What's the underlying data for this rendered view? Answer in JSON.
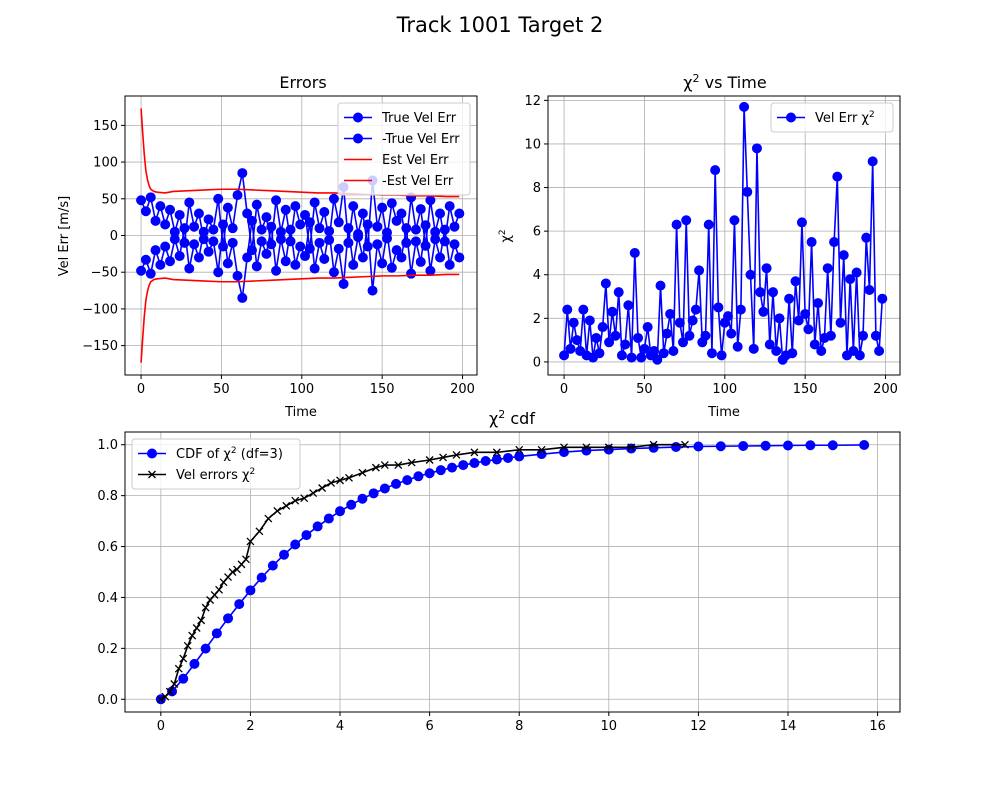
{
  "figure": {
    "title": "Track 1001 Target 2"
  },
  "colors": {
    "true_err": "#0000ff",
    "est_err": "#ff0000",
    "cdf_theory": "#0000ff",
    "cdf_empirical": "#000000",
    "grid": "#b0b0b0"
  },
  "chart_data": [
    {
      "id": "errors",
      "type": "line",
      "title": "Errors",
      "xlabel": "Time",
      "ylabel": "Vel Err [m/s]",
      "xlim": [
        -10,
        209
      ],
      "ylim": [
        -190,
        190
      ],
      "xticks": [
        0,
        50,
        100,
        150,
        200
      ],
      "yticks": [
        -150,
        -100,
        -50,
        0,
        50,
        100,
        150
      ],
      "grid": true,
      "legend_position": "upper-right",
      "series": [
        {
          "name": "True Vel Err",
          "color": "#0000ff",
          "marker": "o",
          "line": true,
          "x": [
            0,
            3,
            6,
            9,
            12,
            15,
            18,
            21,
            24,
            27,
            30,
            33,
            36,
            39,
            42,
            45,
            48,
            51,
            54,
            57,
            60,
            63,
            66,
            69,
            72,
            75,
            78,
            81,
            84,
            87,
            90,
            93,
            96,
            99,
            102,
            105,
            108,
            111,
            114,
            117,
            120,
            123,
            126,
            129,
            132,
            135,
            138,
            141,
            144,
            147,
            150,
            153,
            156,
            159,
            162,
            165,
            168,
            171,
            174,
            177,
            180,
            183,
            186,
            189,
            192,
            195,
            198
          ],
          "y": [
            48,
            33,
            52,
            20,
            40,
            15,
            35,
            5,
            28,
            -10,
            45,
            12,
            30,
            -5,
            22,
            8,
            50,
            -15,
            38,
            10,
            55,
            85,
            30,
            -20,
            42,
            8,
            25,
            -12,
            48,
            5,
            35,
            -8,
            40,
            15,
            28,
            -18,
            45,
            10,
            32,
            -6,
            50,
            18,
            66,
            -10,
            40,
            2,
            30,
            -15,
            75,
            12,
            38,
            -4,
            44,
            20,
            30,
            -10,
            52,
            8,
            36,
            -14,
            48,
            5,
            30,
            -8,
            40,
            12,
            30
          ]
        },
        {
          "name": "-True Vel Err",
          "color": "#0000ff",
          "marker": "o",
          "line": true,
          "x": [
            0,
            3,
            6,
            9,
            12,
            15,
            18,
            21,
            24,
            27,
            30,
            33,
            36,
            39,
            42,
            45,
            48,
            51,
            54,
            57,
            60,
            63,
            66,
            69,
            72,
            75,
            78,
            81,
            84,
            87,
            90,
            93,
            96,
            99,
            102,
            105,
            108,
            111,
            114,
            117,
            120,
            123,
            126,
            129,
            132,
            135,
            138,
            141,
            144,
            147,
            150,
            153,
            156,
            159,
            162,
            165,
            168,
            171,
            174,
            177,
            180,
            183,
            186,
            189,
            192,
            195,
            198
          ],
          "y": [
            -48,
            -33,
            -52,
            -20,
            -40,
            -15,
            -35,
            -5,
            -28,
            10,
            -45,
            -12,
            -30,
            5,
            -22,
            -8,
            -50,
            15,
            -38,
            -10,
            -55,
            -85,
            -30,
            20,
            -42,
            -8,
            -25,
            12,
            -48,
            -5,
            -35,
            8,
            -40,
            -15,
            -28,
            18,
            -45,
            -10,
            -32,
            6,
            -50,
            -18,
            -66,
            10,
            -40,
            -2,
            -30,
            15,
            -75,
            -12,
            -38,
            4,
            -44,
            -20,
            -30,
            10,
            -52,
            -8,
            -36,
            14,
            -48,
            -5,
            -30,
            8,
            -40,
            -12,
            -30
          ]
        },
        {
          "name": "Est Vel Err",
          "color": "#ff0000",
          "marker": "",
          "line": true,
          "x": [
            0,
            1,
            2,
            3,
            4,
            5,
            6,
            8,
            10,
            15,
            20,
            30,
            40,
            50,
            60,
            70,
            80,
            90,
            100,
            110,
            120,
            130,
            140,
            150,
            160,
            170,
            180,
            190,
            198
          ],
          "y": [
            173,
            140,
            110,
            88,
            76,
            68,
            63,
            60,
            59,
            58,
            60,
            61,
            62,
            63,
            63,
            62,
            61,
            60,
            59,
            58,
            58,
            57,
            56,
            55,
            55,
            54,
            54,
            53,
            53
          ]
        },
        {
          "name": "-Est Vel Err",
          "color": "#ff0000",
          "marker": "",
          "line": true,
          "x": [
            0,
            1,
            2,
            3,
            4,
            5,
            6,
            8,
            10,
            15,
            20,
            30,
            40,
            50,
            60,
            70,
            80,
            90,
            100,
            110,
            120,
            130,
            140,
            150,
            160,
            170,
            180,
            190,
            198
          ],
          "y": [
            -173,
            -140,
            -110,
            -88,
            -76,
            -68,
            -63,
            -60,
            -59,
            -58,
            -60,
            -61,
            -62,
            -63,
            -63,
            -62,
            -61,
            -60,
            -59,
            -58,
            -58,
            -57,
            -56,
            -55,
            -55,
            -54,
            -54,
            -53,
            -53
          ]
        }
      ]
    },
    {
      "id": "chi2-time",
      "type": "line",
      "title": "χ² vs Time",
      "xlabel": "Time",
      "ylabel": "χ²",
      "xlim": [
        -10,
        209
      ],
      "ylim": [
        -0.6,
        12.2
      ],
      "xticks": [
        0,
        50,
        100,
        150,
        200
      ],
      "yticks": [
        0,
        2,
        4,
        6,
        8,
        10,
        12
      ],
      "grid": true,
      "legend_position": "upper-right",
      "series": [
        {
          "name": "Vel  Err χ²",
          "color": "#0000ff",
          "marker": "o",
          "line": true,
          "x": [
            0,
            2,
            4,
            6,
            8,
            10,
            12,
            14,
            16,
            18,
            20,
            22,
            24,
            26,
            28,
            30,
            32,
            34,
            36,
            38,
            40,
            42,
            44,
            46,
            48,
            50,
            52,
            54,
            56,
            58,
            60,
            62,
            64,
            66,
            68,
            70,
            72,
            74,
            76,
            78,
            80,
            82,
            84,
            86,
            88,
            90,
            92,
            94,
            96,
            98,
            100,
            102,
            104,
            106,
            108,
            110,
            112,
            114,
            116,
            118,
            120,
            122,
            124,
            126,
            128,
            130,
            132,
            134,
            136,
            138,
            140,
            142,
            144,
            146,
            148,
            150,
            152,
            154,
            156,
            158,
            160,
            162,
            164,
            166,
            168,
            170,
            172,
            174,
            176,
            178,
            180,
            182,
            184,
            186,
            188,
            190,
            192,
            194,
            196,
            198
          ],
          "y": [
            0.3,
            2.4,
            0.6,
            1.8,
            1.0,
            0.5,
            2.4,
            0.3,
            1.9,
            0.2,
            1.1,
            0.4,
            1.6,
            3.6,
            0.9,
            2.3,
            1.2,
            3.2,
            0.3,
            0.8,
            2.6,
            0.2,
            5.0,
            1.1,
            0.2,
            0.6,
            1.6,
            0.3,
            0.5,
            0.1,
            3.5,
            0.4,
            1.3,
            2.2,
            0.5,
            6.3,
            1.8,
            0.9,
            6.5,
            1.2,
            1.9,
            2.4,
            4.2,
            0.9,
            1.2,
            6.3,
            0.4,
            8.8,
            2.5,
            0.3,
            1.8,
            2.1,
            1.3,
            6.5,
            0.7,
            2.4,
            11.7,
            7.8,
            4.0,
            0.6,
            9.8,
            3.2,
            2.3,
            4.3,
            0.8,
            3.2,
            0.5,
            2.0,
            0.1,
            0.3,
            2.9,
            0.4,
            3.7,
            1.9,
            6.4,
            2.2,
            1.5,
            5.5,
            0.8,
            2.7,
            0.5,
            1.1,
            4.3,
            1.2,
            5.5,
            8.5,
            1.8,
            4.9,
            0.3,
            3.8,
            0.5,
            4.1,
            0.3,
            1.2,
            5.7,
            3.3,
            9.2,
            1.2,
            0.5,
            2.9
          ]
        }
      ]
    },
    {
      "id": "chi2-cdf",
      "type": "line",
      "title": "χ² cdf",
      "xlabel": "",
      "ylabel": "",
      "xlim": [
        -0.8,
        16.5
      ],
      "ylim": [
        -0.05,
        1.05
      ],
      "xticks": [
        0,
        2,
        4,
        6,
        8,
        10,
        12,
        14,
        16
      ],
      "yticks": [
        0.0,
        0.2,
        0.4,
        0.6,
        0.8,
        1.0
      ],
      "grid": true,
      "legend_position": "upper-left",
      "series": [
        {
          "name": "CDF of χ² (df=3)",
          "color": "#0000ff",
          "marker": "o",
          "line": true,
          "x": [
            0,
            0.25,
            0.5,
            0.75,
            1.0,
            1.25,
            1.5,
            1.75,
            2.0,
            2.25,
            2.5,
            2.75,
            3.0,
            3.25,
            3.5,
            3.75,
            4.0,
            4.25,
            4.5,
            4.75,
            5.0,
            5.25,
            5.5,
            5.75,
            6.0,
            6.25,
            6.5,
            6.75,
            7.0,
            7.25,
            7.5,
            7.75,
            8.0,
            8.5,
            9.0,
            9.5,
            10.0,
            10.5,
            11.0,
            11.5,
            12.0,
            12.5,
            13.0,
            13.5,
            14.0,
            14.5,
            15.0,
            15.7
          ],
          "y": [
            0.0,
            0.031,
            0.081,
            0.139,
            0.199,
            0.259,
            0.318,
            0.374,
            0.428,
            0.478,
            0.525,
            0.568,
            0.608,
            0.645,
            0.679,
            0.71,
            0.739,
            0.764,
            0.788,
            0.809,
            0.828,
            0.846,
            0.861,
            0.876,
            0.888,
            0.9,
            0.91,
            0.92,
            0.928,
            0.936,
            0.942,
            0.948,
            0.954,
            0.963,
            0.971,
            0.977,
            0.981,
            0.985,
            0.988,
            0.991,
            0.993,
            0.994,
            0.995,
            0.996,
            0.997,
            0.998,
            0.998,
            0.999
          ]
        },
        {
          "name": "Vel errors χ²",
          "color": "#000000",
          "marker": "x",
          "line": true,
          "x": [
            0,
            0.1,
            0.2,
            0.3,
            0.4,
            0.5,
            0.6,
            0.7,
            0.8,
            0.9,
            1.0,
            1.1,
            1.2,
            1.3,
            1.4,
            1.5,
            1.6,
            1.7,
            1.8,
            1.9,
            2.0,
            2.2,
            2.4,
            2.6,
            2.8,
            3.0,
            3.2,
            3.4,
            3.6,
            3.8,
            4.0,
            4.2,
            4.5,
            4.8,
            5.0,
            5.3,
            5.6,
            6.0,
            6.3,
            6.6,
            7.0,
            7.5,
            8.0,
            8.5,
            9.0,
            9.5,
            10.0,
            10.5,
            11.0,
            11.7
          ],
          "y": [
            0.0,
            0.01,
            0.03,
            0.06,
            0.12,
            0.16,
            0.21,
            0.25,
            0.28,
            0.31,
            0.36,
            0.39,
            0.41,
            0.43,
            0.46,
            0.48,
            0.5,
            0.51,
            0.53,
            0.55,
            0.62,
            0.66,
            0.71,
            0.74,
            0.76,
            0.78,
            0.79,
            0.81,
            0.83,
            0.85,
            0.86,
            0.87,
            0.89,
            0.91,
            0.92,
            0.92,
            0.93,
            0.94,
            0.95,
            0.96,
            0.97,
            0.97,
            0.98,
            0.98,
            0.99,
            0.99,
            0.99,
            0.99,
            1.0,
            1.0
          ]
        }
      ]
    }
  ]
}
